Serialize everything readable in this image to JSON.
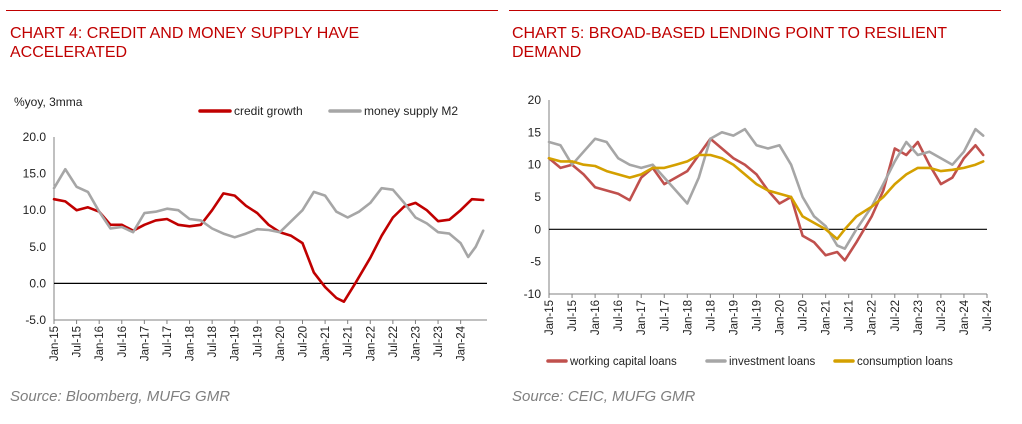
{
  "chart_data": [
    {
      "type": "line",
      "title": "CHART 4: CREDIT AND MONEY SUPPLY HAVE ACCELERATED",
      "ylabel": "%yoy, 3mma",
      "source": "Source: Bloomberg, MUFG GMR",
      "ylim": [
        -5,
        20
      ],
      "yticks": [
        "-5.0",
        "0.0",
        "5.0",
        "10.0",
        "15.0",
        "20.0"
      ],
      "xlim": [
        "2015-01",
        "2024-08"
      ],
      "xticks": [
        "Jan-15",
        "Jul-15",
        "Jan-16",
        "Jul-16",
        "Jan-17",
        "Jul-17",
        "Jan-18",
        "Jul-18",
        "Jan-19",
        "Jul-19",
        "Jan-20",
        "Jul-20",
        "Jan-21",
        "Jul-21",
        "Jan-22",
        "Jul-22",
        "Jan-23",
        "Jul-23",
        "Jan-24"
      ],
      "legend_position": "top",
      "grid": false,
      "series": [
        {
          "name": "credit growth",
          "color": "#c00000",
          "points": [
            [
              "2015-01",
              11.5
            ],
            [
              "2015-04",
              11.2
            ],
            [
              "2015-07",
              10.0
            ],
            [
              "2015-10",
              10.4
            ],
            [
              "2016-01",
              9.8
            ],
            [
              "2016-04",
              8.0
            ],
            [
              "2016-07",
              8.0
            ],
            [
              "2016-10",
              7.2
            ],
            [
              "2017-01",
              8.0
            ],
            [
              "2017-04",
              8.6
            ],
            [
              "2017-07",
              8.8
            ],
            [
              "2017-10",
              8.0
            ],
            [
              "2018-01",
              7.8
            ],
            [
              "2018-04",
              8.0
            ],
            [
              "2018-07",
              10.0
            ],
            [
              "2018-10",
              12.3
            ],
            [
              "2019-01",
              12.0
            ],
            [
              "2019-04",
              10.6
            ],
            [
              "2019-07",
              9.6
            ],
            [
              "2019-10",
              8.0
            ],
            [
              "2020-01",
              7.0
            ],
            [
              "2020-04",
              6.5
            ],
            [
              "2020-07",
              5.5
            ],
            [
              "2020-10",
              1.5
            ],
            [
              "2021-01",
              -0.5
            ],
            [
              "2021-04",
              -2.0
            ],
            [
              "2021-06",
              -2.5
            ],
            [
              "2021-09",
              0.0
            ],
            [
              "2022-01",
              3.5
            ],
            [
              "2022-04",
              6.5
            ],
            [
              "2022-07",
              9.0
            ],
            [
              "2022-10",
              10.5
            ],
            [
              "2023-01",
              11.0
            ],
            [
              "2023-04",
              10.0
            ],
            [
              "2023-07",
              8.5
            ],
            [
              "2023-10",
              8.7
            ],
            [
              "2024-01",
              10.0
            ],
            [
              "2024-04",
              11.5
            ],
            [
              "2024-07",
              11.4
            ]
          ]
        },
        {
          "name": "money supply M2",
          "color": "#a6a6a6",
          "points": [
            [
              "2015-01",
              13.0
            ],
            [
              "2015-04",
              15.6
            ],
            [
              "2015-07",
              13.2
            ],
            [
              "2015-10",
              12.5
            ],
            [
              "2016-01",
              9.8
            ],
            [
              "2016-04",
              7.5
            ],
            [
              "2016-07",
              7.7
            ],
            [
              "2016-10",
              7.0
            ],
            [
              "2017-01",
              9.6
            ],
            [
              "2017-04",
              9.8
            ],
            [
              "2017-07",
              10.2
            ],
            [
              "2017-10",
              10.0
            ],
            [
              "2018-01",
              8.8
            ],
            [
              "2018-04",
              8.6
            ],
            [
              "2018-07",
              7.5
            ],
            [
              "2018-10",
              6.8
            ],
            [
              "2019-01",
              6.3
            ],
            [
              "2019-04",
              6.8
            ],
            [
              "2019-07",
              7.4
            ],
            [
              "2019-10",
              7.3
            ],
            [
              "2020-01",
              7.0
            ],
            [
              "2020-04",
              8.5
            ],
            [
              "2020-07",
              10.0
            ],
            [
              "2020-10",
              12.5
            ],
            [
              "2021-01",
              12.0
            ],
            [
              "2021-04",
              9.8
            ],
            [
              "2021-07",
              9.0
            ],
            [
              "2021-10",
              9.8
            ],
            [
              "2022-01",
              11.0
            ],
            [
              "2022-04",
              13.0
            ],
            [
              "2022-07",
              12.8
            ],
            [
              "2022-10",
              11.0
            ],
            [
              "2023-01",
              9.0
            ],
            [
              "2023-04",
              8.2
            ],
            [
              "2023-07",
              7.0
            ],
            [
              "2023-10",
              6.8
            ],
            [
              "2024-01",
              5.5
            ],
            [
              "2024-03",
              3.6
            ],
            [
              "2024-05",
              5.0
            ],
            [
              "2024-07",
              7.2
            ]
          ]
        }
      ]
    },
    {
      "type": "line",
      "title": "CHART 5: BROAD-BASED LENDING POINT TO RESILIENT DEMAND",
      "source": "Source: CEIC, MUFG GMR",
      "ylim": [
        -10,
        20
      ],
      "yticks": [
        "-10",
        "-5",
        "0",
        "5",
        "10",
        "15",
        "20"
      ],
      "xlim": [
        "2015-01",
        "2024-07"
      ],
      "xticks": [
        "Jan-15",
        "Jul-15",
        "Jan-16",
        "Jul-16",
        "Jan-17",
        "Jul-17",
        "Jan-18",
        "Jul-18",
        "Jan-19",
        "Jul-19",
        "Jan-20",
        "Jul-20",
        "Jan-21",
        "Jul-21",
        "Jan-22",
        "Jul-22",
        "Jan-23",
        "Jul-23",
        "Jan-24",
        "Jul-24"
      ],
      "legend_position": "bottom",
      "grid": false,
      "series": [
        {
          "name": "working capital loans",
          "color": "#c0504d",
          "points": [
            [
              "2015-01",
              11.0
            ],
            [
              "2015-04",
              9.5
            ],
            [
              "2015-07",
              10.0
            ],
            [
              "2015-10",
              8.5
            ],
            [
              "2016-01",
              6.5
            ],
            [
              "2016-04",
              6.0
            ],
            [
              "2016-07",
              5.5
            ],
            [
              "2016-10",
              4.5
            ],
            [
              "2017-01",
              8.0
            ],
            [
              "2017-04",
              9.5
            ],
            [
              "2017-07",
              7.0
            ],
            [
              "2017-10",
              8.0
            ],
            [
              "2018-01",
              9.0
            ],
            [
              "2018-04",
              11.5
            ],
            [
              "2018-07",
              14.0
            ],
            [
              "2018-10",
              12.5
            ],
            [
              "2019-01",
              11.0
            ],
            [
              "2019-04",
              10.0
            ],
            [
              "2019-07",
              8.5
            ],
            [
              "2019-10",
              6.0
            ],
            [
              "2020-01",
              4.0
            ],
            [
              "2020-04",
              5.0
            ],
            [
              "2020-07",
              -1.0
            ],
            [
              "2020-10",
              -2.0
            ],
            [
              "2021-01",
              -4.0
            ],
            [
              "2021-04",
              -3.5
            ],
            [
              "2021-06",
              -4.8
            ],
            [
              "2021-09",
              -2.0
            ],
            [
              "2022-01",
              2.0
            ],
            [
              "2022-04",
              6.0
            ],
            [
              "2022-07",
              12.5
            ],
            [
              "2022-10",
              11.5
            ],
            [
              "2023-01",
              13.5
            ],
            [
              "2023-04",
              10.0
            ],
            [
              "2023-07",
              7.0
            ],
            [
              "2023-10",
              8.0
            ],
            [
              "2024-01",
              11.0
            ],
            [
              "2024-04",
              13.0
            ],
            [
              "2024-06",
              11.5
            ]
          ]
        },
        {
          "name": "investment loans",
          "color": "#a6a6a6",
          "points": [
            [
              "2015-01",
              13.5
            ],
            [
              "2015-04",
              13.0
            ],
            [
              "2015-07",
              10.0
            ],
            [
              "2015-10",
              12.0
            ],
            [
              "2016-01",
              14.0
            ],
            [
              "2016-04",
              13.5
            ],
            [
              "2016-07",
              11.0
            ],
            [
              "2016-10",
              10.0
            ],
            [
              "2017-01",
              9.5
            ],
            [
              "2017-04",
              10.0
            ],
            [
              "2017-07",
              8.0
            ],
            [
              "2017-10",
              6.0
            ],
            [
              "2018-01",
              4.0
            ],
            [
              "2018-04",
              8.0
            ],
            [
              "2018-07",
              14.0
            ],
            [
              "2018-10",
              15.0
            ],
            [
              "2019-01",
              14.5
            ],
            [
              "2019-04",
              15.5
            ],
            [
              "2019-07",
              13.0
            ],
            [
              "2019-10",
              12.5
            ],
            [
              "2020-01",
              13.0
            ],
            [
              "2020-04",
              10.0
            ],
            [
              "2020-07",
              5.0
            ],
            [
              "2020-10",
              2.0
            ],
            [
              "2021-01",
              0.5
            ],
            [
              "2021-04",
              -2.5
            ],
            [
              "2021-06",
              -3.0
            ],
            [
              "2021-09",
              0.0
            ],
            [
              "2022-01",
              3.5
            ],
            [
              "2022-04",
              7.0
            ],
            [
              "2022-07",
              10.5
            ],
            [
              "2022-10",
              13.5
            ],
            [
              "2023-01",
              11.5
            ],
            [
              "2023-04",
              12.0
            ],
            [
              "2023-07",
              11.0
            ],
            [
              "2023-10",
              10.0
            ],
            [
              "2024-01",
              12.0
            ],
            [
              "2024-04",
              15.5
            ],
            [
              "2024-06",
              14.5
            ]
          ]
        },
        {
          "name": "consumption loans",
          "color": "#d4a000",
          "points": [
            [
              "2015-01",
              11.0
            ],
            [
              "2015-04",
              10.5
            ],
            [
              "2015-07",
              10.5
            ],
            [
              "2015-10",
              10.0
            ],
            [
              "2016-01",
              9.8
            ],
            [
              "2016-04",
              9.0
            ],
            [
              "2016-07",
              8.5
            ],
            [
              "2016-10",
              8.0
            ],
            [
              "2017-01",
              8.5
            ],
            [
              "2017-04",
              9.5
            ],
            [
              "2017-07",
              9.5
            ],
            [
              "2017-10",
              10.0
            ],
            [
              "2018-01",
              10.5
            ],
            [
              "2018-04",
              11.5
            ],
            [
              "2018-07",
              11.5
            ],
            [
              "2018-10",
              11.0
            ],
            [
              "2019-01",
              10.0
            ],
            [
              "2019-04",
              8.5
            ],
            [
              "2019-07",
              7.0
            ],
            [
              "2019-10",
              6.0
            ],
            [
              "2020-01",
              5.5
            ],
            [
              "2020-04",
              5.0
            ],
            [
              "2020-07",
              2.0
            ],
            [
              "2020-10",
              1.0
            ],
            [
              "2021-01",
              0.0
            ],
            [
              "2021-04",
              -1.5
            ],
            [
              "2021-06",
              0.0
            ],
            [
              "2021-09",
              2.0
            ],
            [
              "2022-01",
              3.5
            ],
            [
              "2022-04",
              5.0
            ],
            [
              "2022-07",
              7.0
            ],
            [
              "2022-10",
              8.5
            ],
            [
              "2023-01",
              9.5
            ],
            [
              "2023-04",
              9.5
            ],
            [
              "2023-07",
              9.0
            ],
            [
              "2023-10",
              9.2
            ],
            [
              "2024-01",
              9.5
            ],
            [
              "2024-04",
              10.0
            ],
            [
              "2024-06",
              10.5
            ]
          ]
        }
      ]
    }
  ]
}
